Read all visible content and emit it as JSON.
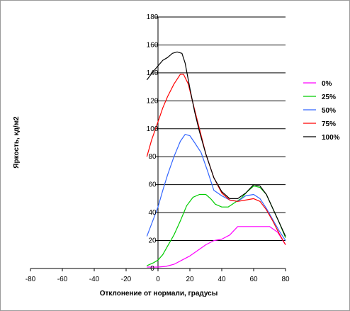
{
  "chart_data": {
    "type": "line",
    "title": "",
    "xlabel": "Отклонение от нормали, градусы",
    "ylabel": "Яркость, кд/м2",
    "xlim": [
      -80,
      80
    ],
    "ylim": [
      0,
      180
    ],
    "x_ticks": [
      "-80",
      "-60",
      "-40",
      "-20",
      "0",
      "20",
      "40",
      "60",
      "80"
    ],
    "y_ticks": [
      "0",
      "20",
      "40",
      "60",
      "80",
      "100",
      "120",
      "140",
      "160",
      "180"
    ],
    "grid": "horizontal",
    "legend_position": "right",
    "colors": {
      "0%": "#ff00ff",
      "25%": "#00cc00",
      "50%": "#3366ff",
      "75%": "#ff0000",
      "100%": "#000000"
    },
    "series": [
      {
        "name": "0%",
        "x": [
          -7,
          0,
          5,
          10,
          15,
          20,
          25,
          30,
          35,
          40,
          45,
          50,
          55,
          60,
          65,
          70,
          75,
          80
        ],
        "y": [
          1,
          1,
          1.5,
          3,
          6,
          9,
          13,
          17,
          20,
          21,
          24,
          30,
          30,
          30,
          30,
          30,
          26,
          17
        ]
      },
      {
        "name": "25%",
        "x": [
          -7,
          -3,
          0,
          3,
          6,
          10,
          14,
          18,
          22,
          26,
          30,
          33,
          36,
          40,
          44,
          48,
          52,
          56,
          60,
          64,
          68,
          72,
          76,
          80
        ],
        "y": [
          2,
          4,
          6,
          10,
          16,
          24,
          34,
          45,
          51,
          53,
          53,
          50,
          46,
          44,
          44,
          47,
          50,
          55,
          59,
          58,
          53,
          43,
          33,
          22
        ]
      },
      {
        "name": "50%",
        "x": [
          -7,
          -4,
          0,
          3,
          6,
          10,
          14,
          17,
          20,
          23,
          27,
          31,
          35,
          40,
          45,
          50,
          55,
          60,
          64,
          68,
          72,
          76,
          80
        ],
        "y": [
          23,
          32,
          44,
          56,
          67,
          80,
          91,
          96,
          95,
          90,
          83,
          70,
          56,
          52,
          49,
          48,
          52,
          53,
          50,
          43,
          35,
          27,
          20
        ]
      },
      {
        "name": "75%",
        "x": [
          -7,
          -4,
          0,
          3,
          6,
          10,
          14,
          16,
          19,
          22,
          26,
          30,
          35,
          40,
          45,
          50,
          55,
          60,
          64,
          68,
          72,
          76,
          80
        ],
        "y": [
          80,
          92,
          105,
          115,
          123,
          132,
          139,
          139,
          132,
          118,
          100,
          82,
          65,
          54,
          49,
          48,
          49,
          50,
          48,
          42,
          34,
          25,
          17
        ]
      },
      {
        "name": "100%",
        "x": [
          -7,
          -5,
          -3,
          0,
          3,
          6,
          9,
          12,
          15,
          17,
          20,
          23,
          26,
          30,
          35,
          40,
          45,
          50,
          55,
          60,
          64,
          68,
          72,
          76,
          80
        ],
        "y": [
          135,
          138,
          141,
          145,
          149,
          151,
          154,
          155,
          154,
          147,
          129,
          112,
          98,
          82,
          65,
          55,
          50,
          50,
          54,
          60,
          59,
          53,
          43,
          33,
          23
        ]
      }
    ]
  }
}
